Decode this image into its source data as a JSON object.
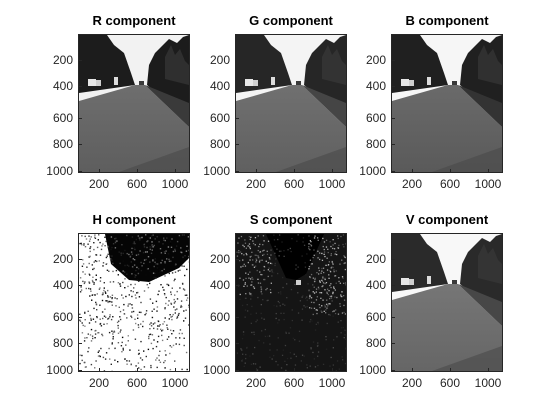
{
  "figure": {
    "panels": [
      {
        "id": "r",
        "title": "R component"
      },
      {
        "id": "g",
        "title": "G component"
      },
      {
        "id": "b",
        "title": "B component"
      },
      {
        "id": "h",
        "title": "H component"
      },
      {
        "id": "s",
        "title": "S component"
      },
      {
        "id": "v",
        "title": "V component"
      }
    ],
    "yticks": [
      "200",
      "400",
      "600",
      "800",
      "1000"
    ],
    "xticks": [
      "200",
      "600",
      "1000"
    ]
  }
}
